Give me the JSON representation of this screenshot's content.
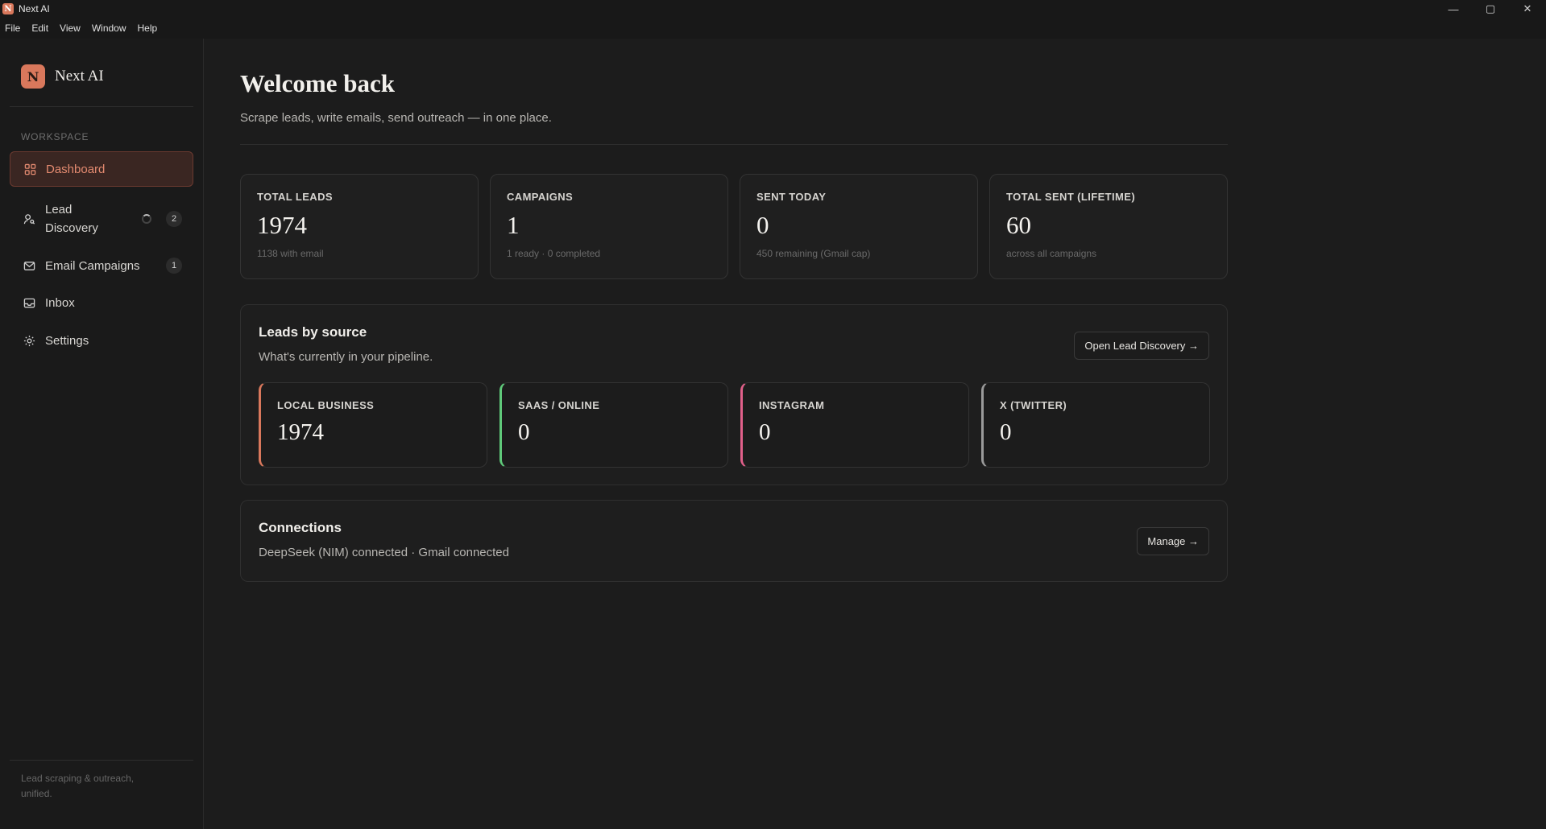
{
  "window": {
    "title": "Next AI",
    "app_icon_letter": "N",
    "controls": {
      "minimize": "—",
      "maximize": "▢",
      "close": "✕"
    }
  },
  "menu": [
    "File",
    "Edit",
    "View",
    "Window",
    "Help"
  ],
  "sidebar": {
    "brand_letter": "N",
    "brand_name": "Next AI",
    "section_label": "WORKSPACE",
    "items": [
      {
        "label": "Dashboard",
        "icon": "grid-icon",
        "badge": null,
        "active": true
      },
      {
        "label": "Lead Discovery",
        "icon": "user-search-icon",
        "badge": "2",
        "loading": true
      },
      {
        "label": "Email Campaigns",
        "icon": "mail-icon",
        "badge": "1"
      },
      {
        "label": "Inbox",
        "icon": "inbox-icon",
        "badge": null
      },
      {
        "label": "Settings",
        "icon": "gear-icon",
        "badge": null
      }
    ],
    "footer": "Lead scraping & outreach, unified."
  },
  "header": {
    "title": "Welcome back",
    "subtitle": "Scrape leads, write emails, send outreach — in one place."
  },
  "stats": [
    {
      "label": "TOTAL LEADS",
      "value": "1974",
      "sub": "1138 with email"
    },
    {
      "label": "CAMPAIGNS",
      "value": "1",
      "sub": "1 ready · 0 completed"
    },
    {
      "label": "SENT TODAY",
      "value": "0",
      "sub": "450 remaining (Gmail cap)"
    },
    {
      "label": "TOTAL SENT (LIFETIME)",
      "value": "60",
      "sub": "across all campaigns"
    }
  ],
  "leads_by_source": {
    "title": "Leads by source",
    "subtitle": "What's currently in your pipeline.",
    "button": "Open Lead Discovery →",
    "sources": [
      {
        "label": "LOCAL BUSINESS",
        "value": "1974",
        "color": "#d9785c"
      },
      {
        "label": "SAAS / ONLINE",
        "value": "0",
        "color": "#5fc97a"
      },
      {
        "label": "INSTAGRAM",
        "value": "0",
        "color": "#e0608a"
      },
      {
        "label": "X (TWITTER)",
        "value": "0",
        "color": "#9a9a9a"
      }
    ]
  },
  "connections": {
    "title": "Connections",
    "status": "DeepSeek (NIM) connected · Gmail connected",
    "button": "Manage →"
  },
  "colors": {
    "accent": "#d9785c",
    "background": "#1c1c1c"
  }
}
